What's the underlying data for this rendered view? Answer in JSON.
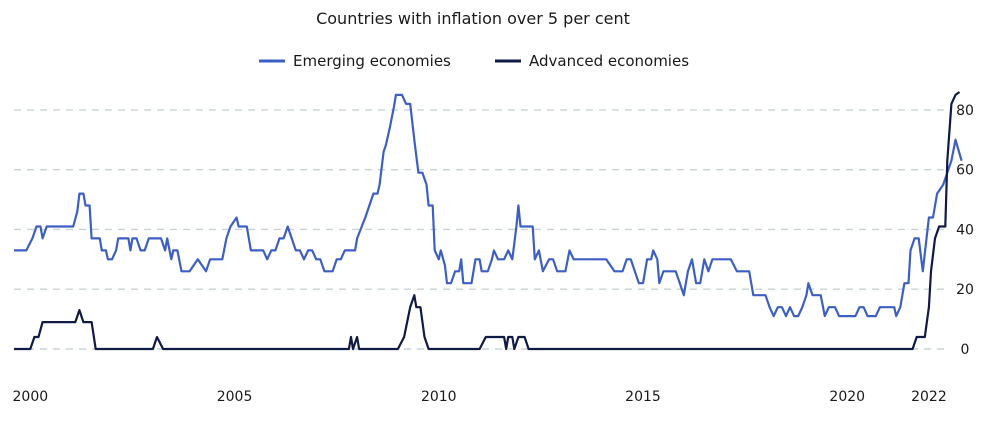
{
  "chart_data": {
    "type": "line",
    "title": "Countries with inflation over 5 per cent",
    "xlabel": "",
    "ylabel": "",
    "xlim": [
      1999.6,
      2022.1
    ],
    "ylim": [
      0,
      90
    ],
    "y_axis_side": "right",
    "grid": "horizontal-dashed",
    "legend_position": "top-center",
    "x_ticks": [
      {
        "value": 2000,
        "label": "2000"
      },
      {
        "value": 2005,
        "label": "2005"
      },
      {
        "value": 2010,
        "label": "2010"
      },
      {
        "value": 2015,
        "label": "2015"
      },
      {
        "value": 2020,
        "label": "2020"
      },
      {
        "value": 2022,
        "label": "2022"
      }
    ],
    "y_ticks": [
      {
        "value": 0,
        "label": "0"
      },
      {
        "value": 20,
        "label": "20"
      },
      {
        "value": 40,
        "label": "40"
      },
      {
        "value": 60,
        "label": "60"
      },
      {
        "value": 80,
        "label": "80"
      }
    ],
    "series": [
      {
        "name": "Emerging economies",
        "color": "#3d5fc4",
        "points": [
          [
            1999.6,
            33
          ],
          [
            1999.9,
            33
          ],
          [
            2000.05,
            37
          ],
          [
            2000.15,
            41
          ],
          [
            2000.25,
            41
          ],
          [
            2000.3,
            37
          ],
          [
            2000.4,
            41
          ],
          [
            2000.6,
            41
          ],
          [
            2000.8,
            41
          ],
          [
            2000.9,
            41
          ],
          [
            2000.95,
            41
          ],
          [
            2001.05,
            41
          ],
          [
            2001.15,
            46
          ],
          [
            2001.2,
            52
          ],
          [
            2001.3,
            52
          ],
          [
            2001.35,
            48
          ],
          [
            2001.45,
            48
          ],
          [
            2001.5,
            37
          ],
          [
            2001.6,
            37
          ],
          [
            2001.7,
            37
          ],
          [
            2001.75,
            33
          ],
          [
            2001.85,
            33
          ],
          [
            2001.9,
            30
          ],
          [
            2002.0,
            30
          ],
          [
            2002.1,
            33
          ],
          [
            2002.15,
            37
          ],
          [
            2002.3,
            37
          ],
          [
            2002.4,
            37
          ],
          [
            2002.45,
            33
          ],
          [
            2002.5,
            37
          ],
          [
            2002.6,
            37
          ],
          [
            2002.7,
            33
          ],
          [
            2002.8,
            33
          ],
          [
            2002.9,
            37
          ],
          [
            2003.0,
            37
          ],
          [
            2003.2,
            37
          ],
          [
            2003.3,
            33
          ],
          [
            2003.35,
            37
          ],
          [
            2003.45,
            30
          ],
          [
            2003.5,
            33
          ],
          [
            2003.6,
            33
          ],
          [
            2003.7,
            26
          ],
          [
            2003.9,
            26
          ],
          [
            2004.0,
            28
          ],
          [
            2004.1,
            30
          ],
          [
            2004.2,
            28
          ],
          [
            2004.3,
            26
          ],
          [
            2004.4,
            30
          ],
          [
            2004.6,
            30
          ],
          [
            2004.7,
            30
          ],
          [
            2004.8,
            37
          ],
          [
            2004.9,
            41
          ],
          [
            2005.05,
            44
          ],
          [
            2005.1,
            41
          ],
          [
            2005.2,
            41
          ],
          [
            2005.3,
            41
          ],
          [
            2005.4,
            33
          ],
          [
            2005.55,
            33
          ],
          [
            2005.7,
            33
          ],
          [
            2005.8,
            30
          ],
          [
            2005.9,
            33
          ],
          [
            2006.0,
            33
          ],
          [
            2006.1,
            37
          ],
          [
            2006.2,
            37
          ],
          [
            2006.3,
            41
          ],
          [
            2006.4,
            37
          ],
          [
            2006.5,
            33
          ],
          [
            2006.6,
            33
          ],
          [
            2006.7,
            30
          ],
          [
            2006.8,
            33
          ],
          [
            2006.9,
            33
          ],
          [
            2007.0,
            30
          ],
          [
            2007.1,
            30
          ],
          [
            2007.2,
            26
          ],
          [
            2007.3,
            26
          ],
          [
            2007.4,
            26
          ],
          [
            2007.5,
            30
          ],
          [
            2007.6,
            30
          ],
          [
            2007.7,
            33
          ],
          [
            2007.8,
            33
          ],
          [
            2007.95,
            33
          ],
          [
            2008.0,
            37
          ],
          [
            2008.2,
            44
          ],
          [
            2008.4,
            52
          ],
          [
            2008.5,
            52
          ],
          [
            2008.55,
            55
          ],
          [
            2008.65,
            66
          ],
          [
            2008.7,
            68
          ],
          [
            2008.8,
            74
          ],
          [
            2008.9,
            81
          ],
          [
            2008.95,
            85
          ],
          [
            2009.1,
            85
          ],
          [
            2009.2,
            82
          ],
          [
            2009.3,
            82
          ],
          [
            2009.4,
            70
          ],
          [
            2009.5,
            59
          ],
          [
            2009.6,
            59
          ],
          [
            2009.7,
            55
          ],
          [
            2009.75,
            48
          ],
          [
            2009.85,
            48
          ],
          [
            2009.9,
            33
          ],
          [
            2010.0,
            30
          ],
          [
            2010.05,
            33
          ],
          [
            2010.15,
            28
          ],
          [
            2010.2,
            22
          ],
          [
            2010.3,
            22
          ],
          [
            2010.4,
            26
          ],
          [
            2010.5,
            26
          ],
          [
            2010.55,
            30
          ],
          [
            2010.6,
            22
          ],
          [
            2010.8,
            22
          ],
          [
            2010.9,
            30
          ],
          [
            2011.0,
            30
          ],
          [
            2011.05,
            26
          ],
          [
            2011.2,
            26
          ],
          [
            2011.3,
            30
          ],
          [
            2011.35,
            33
          ],
          [
            2011.45,
            30
          ],
          [
            2011.6,
            30
          ],
          [
            2011.7,
            33
          ],
          [
            2011.8,
            30
          ],
          [
            2011.9,
            41
          ],
          [
            2011.95,
            48
          ],
          [
            2012.0,
            41
          ],
          [
            2012.3,
            41
          ],
          [
            2012.35,
            30
          ],
          [
            2012.45,
            33
          ],
          [
            2012.55,
            26
          ],
          [
            2012.7,
            30
          ],
          [
            2012.8,
            30
          ],
          [
            2012.9,
            26
          ],
          [
            2013.0,
            26
          ],
          [
            2013.1,
            26
          ],
          [
            2013.2,
            33
          ],
          [
            2013.3,
            30
          ],
          [
            2013.5,
            30
          ],
          [
            2013.7,
            30
          ],
          [
            2013.9,
            30
          ],
          [
            2014.1,
            30
          ],
          [
            2014.3,
            26
          ],
          [
            2014.5,
            26
          ],
          [
            2014.6,
            30
          ],
          [
            2014.7,
            30
          ],
          [
            2014.8,
            26
          ],
          [
            2014.9,
            22
          ],
          [
            2015.0,
            22
          ],
          [
            2015.1,
            30
          ],
          [
            2015.2,
            30
          ],
          [
            2015.25,
            33
          ],
          [
            2015.35,
            30
          ],
          [
            2015.4,
            22
          ],
          [
            2015.5,
            26
          ],
          [
            2015.6,
            26
          ],
          [
            2015.8,
            26
          ],
          [
            2015.9,
            22
          ],
          [
            2016.0,
            18
          ],
          [
            2016.1,
            26
          ],
          [
            2016.2,
            30
          ],
          [
            2016.3,
            22
          ],
          [
            2016.4,
            22
          ],
          [
            2016.5,
            30
          ],
          [
            2016.6,
            26
          ],
          [
            2016.7,
            30
          ],
          [
            2016.85,
            30
          ],
          [
            2017.0,
            30
          ],
          [
            2017.15,
            30
          ],
          [
            2017.3,
            26
          ],
          [
            2017.45,
            26
          ],
          [
            2017.6,
            26
          ],
          [
            2017.7,
            18
          ],
          [
            2017.85,
            18
          ],
          [
            2018.0,
            18
          ],
          [
            2018.1,
            14
          ],
          [
            2018.2,
            11
          ],
          [
            2018.3,
            14
          ],
          [
            2018.4,
            14
          ],
          [
            2018.5,
            11
          ],
          [
            2018.6,
            14
          ],
          [
            2018.7,
            11
          ],
          [
            2018.8,
            11
          ],
          [
            2018.9,
            14
          ],
          [
            2019.0,
            18
          ],
          [
            2019.05,
            22
          ],
          [
            2019.15,
            18
          ],
          [
            2019.25,
            18
          ],
          [
            2019.35,
            18
          ],
          [
            2019.45,
            11
          ],
          [
            2019.55,
            14
          ],
          [
            2019.7,
            14
          ],
          [
            2019.8,
            11
          ],
          [
            2020.0,
            11
          ],
          [
            2020.1,
            11
          ],
          [
            2020.2,
            11
          ],
          [
            2020.3,
            14
          ],
          [
            2020.4,
            14
          ],
          [
            2020.5,
            11
          ],
          [
            2020.7,
            11
          ],
          [
            2020.8,
            14
          ],
          [
            2021.0,
            14
          ],
          [
            2021.15,
            14
          ],
          [
            2021.2,
            11
          ],
          [
            2021.3,
            14
          ],
          [
            2021.4,
            22
          ],
          [
            2021.5,
            22
          ],
          [
            2021.55,
            33
          ],
          [
            2021.65,
            37
          ],
          [
            2021.75,
            37
          ],
          [
            2021.85,
            26
          ],
          [
            2022.0,
            44
          ],
          [
            2022.1,
            44
          ],
          [
            2022.2,
            52
          ],
          [
            2022.35,
            55
          ],
          [
            2022.45,
            59
          ],
          [
            2022.55,
            63
          ],
          [
            2022.65,
            70
          ],
          [
            2022.8,
            63
          ]
        ]
      },
      {
        "name": "Advanced economies",
        "color": "#0f1a45",
        "points": [
          [
            1999.6,
            0
          ],
          [
            2000.0,
            0
          ],
          [
            2000.1,
            4
          ],
          [
            2000.2,
            4
          ],
          [
            2000.3,
            9
          ],
          [
            2000.5,
            9
          ],
          [
            2000.7,
            9
          ],
          [
            2000.9,
            9
          ],
          [
            2001.1,
            9
          ],
          [
            2001.2,
            13
          ],
          [
            2001.3,
            9
          ],
          [
            2001.5,
            9
          ],
          [
            2001.6,
            0
          ],
          [
            2002.0,
            0
          ],
          [
            2002.5,
            0
          ],
          [
            2003.0,
            0
          ],
          [
            2003.1,
            4
          ],
          [
            2003.25,
            0
          ],
          [
            2004.0,
            0
          ],
          [
            2005.0,
            0
          ],
          [
            2006.0,
            0
          ],
          [
            2007.0,
            0
          ],
          [
            2007.8,
            0
          ],
          [
            2007.85,
            4
          ],
          [
            2007.9,
            0
          ],
          [
            2008.0,
            4
          ],
          [
            2008.05,
            0
          ],
          [
            2009.0,
            0
          ],
          [
            2009.15,
            4
          ],
          [
            2009.3,
            14
          ],
          [
            2009.4,
            18
          ],
          [
            2009.45,
            14
          ],
          [
            2009.55,
            14
          ],
          [
            2009.65,
            4
          ],
          [
            2009.75,
            0
          ],
          [
            2011.0,
            0
          ],
          [
            2011.15,
            4
          ],
          [
            2011.6,
            4
          ],
          [
            2011.65,
            0
          ],
          [
            2011.7,
            4
          ],
          [
            2011.8,
            4
          ],
          [
            2011.85,
            0
          ],
          [
            2011.95,
            4
          ],
          [
            2012.1,
            4
          ],
          [
            2012.2,
            0
          ],
          [
            2014.0,
            0
          ],
          [
            2016.0,
            0
          ],
          [
            2018.0,
            0
          ],
          [
            2020.0,
            0
          ],
          [
            2021.2,
            0
          ],
          [
            2021.6,
            0
          ],
          [
            2021.7,
            4
          ],
          [
            2021.9,
            4
          ],
          [
            2022.0,
            14
          ],
          [
            2022.05,
            26
          ],
          [
            2022.15,
            37
          ],
          [
            2022.25,
            41
          ],
          [
            2022.4,
            41
          ],
          [
            2022.45,
            63
          ],
          [
            2022.55,
            82
          ],
          [
            2022.65,
            85
          ],
          [
            2022.75,
            86
          ]
        ]
      }
    ]
  }
}
